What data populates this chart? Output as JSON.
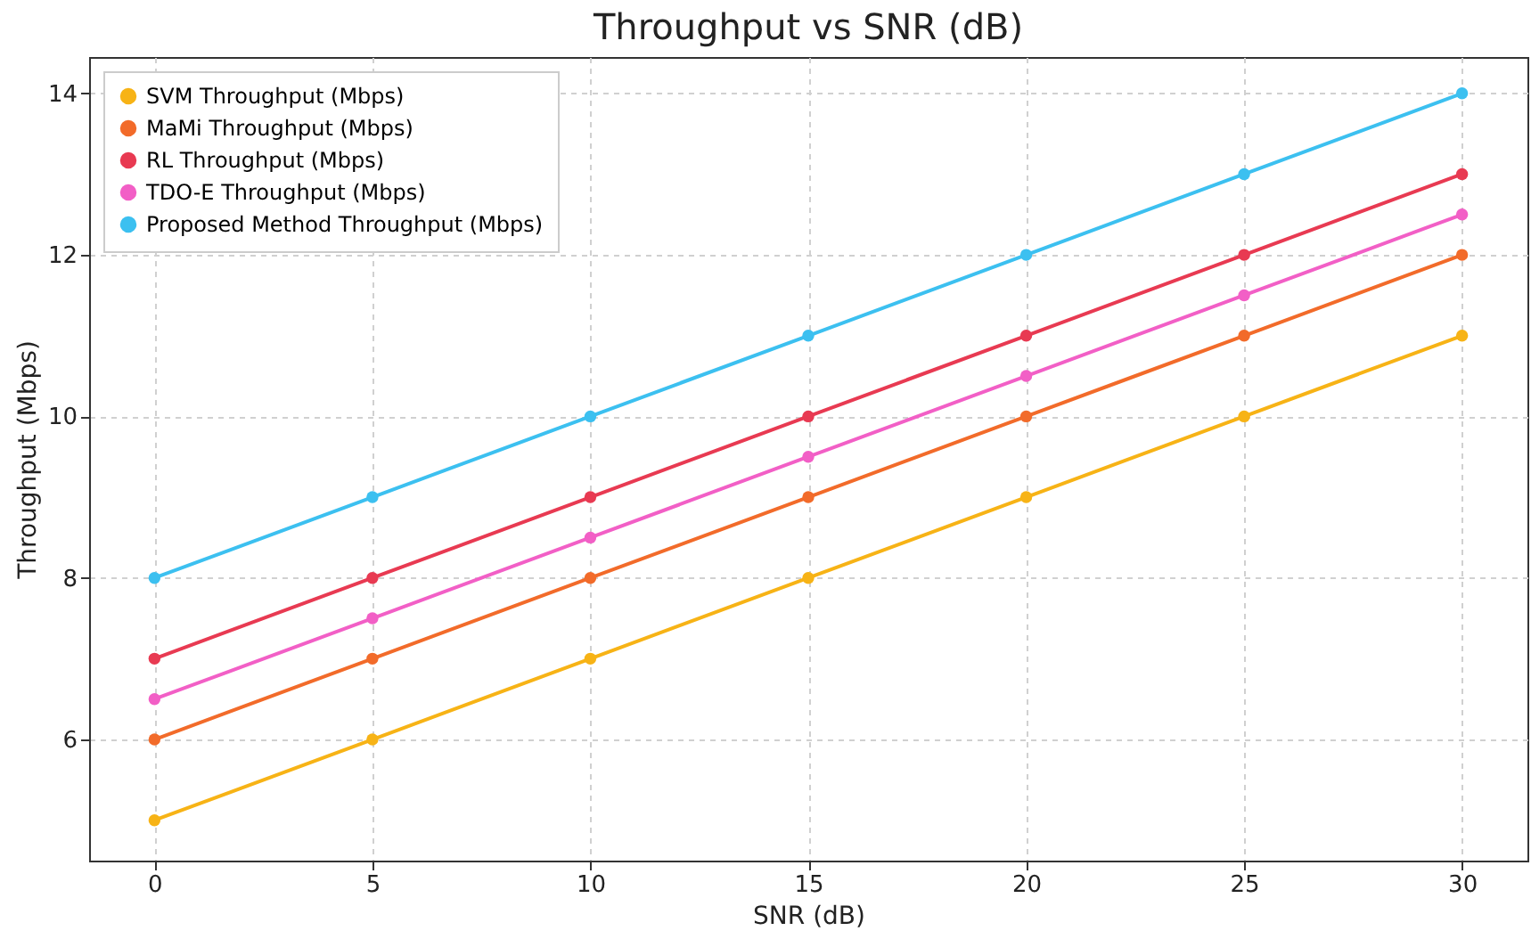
{
  "chart_data": {
    "type": "line",
    "title": "Throughput vs SNR (dB)",
    "xlabel": "SNR (dB)",
    "ylabel": "Throughput (Mbps)",
    "x": [
      0,
      5,
      10,
      15,
      20,
      25,
      30
    ],
    "series": [
      {
        "name": "SVM Throughput (Mbps)",
        "color": "#f7b316",
        "values": [
          5,
          6,
          7,
          8,
          9,
          10,
          11
        ]
      },
      {
        "name": "MaMi Throughput (Mbps)",
        "color": "#f26b2a",
        "values": [
          6,
          7,
          8,
          9,
          10,
          11,
          12
        ]
      },
      {
        "name": "RL Throughput (Mbps)",
        "color": "#e83a52",
        "values": [
          7,
          8,
          9,
          10,
          11,
          12,
          13
        ]
      },
      {
        "name": "TDO-E Throughput (Mbps)",
        "color": "#f25fc6",
        "values": [
          6.5,
          7.5,
          8.5,
          9.5,
          10.5,
          11.5,
          12.5
        ]
      },
      {
        "name": "Proposed Method Throughput (Mbps)",
        "color": "#3cc0f0",
        "values": [
          8,
          9,
          10,
          11,
          12,
          13,
          14
        ]
      }
    ],
    "xlim": [
      -1.5,
      31.5
    ],
    "ylim": [
      4.5,
      14.45
    ],
    "xticks": [
      0,
      5,
      10,
      15,
      20,
      25,
      30
    ],
    "yticks": [
      6,
      8,
      10,
      12,
      14
    ],
    "grid": true,
    "legend": "top left",
    "marker": "circle",
    "line_style": "solid"
  }
}
